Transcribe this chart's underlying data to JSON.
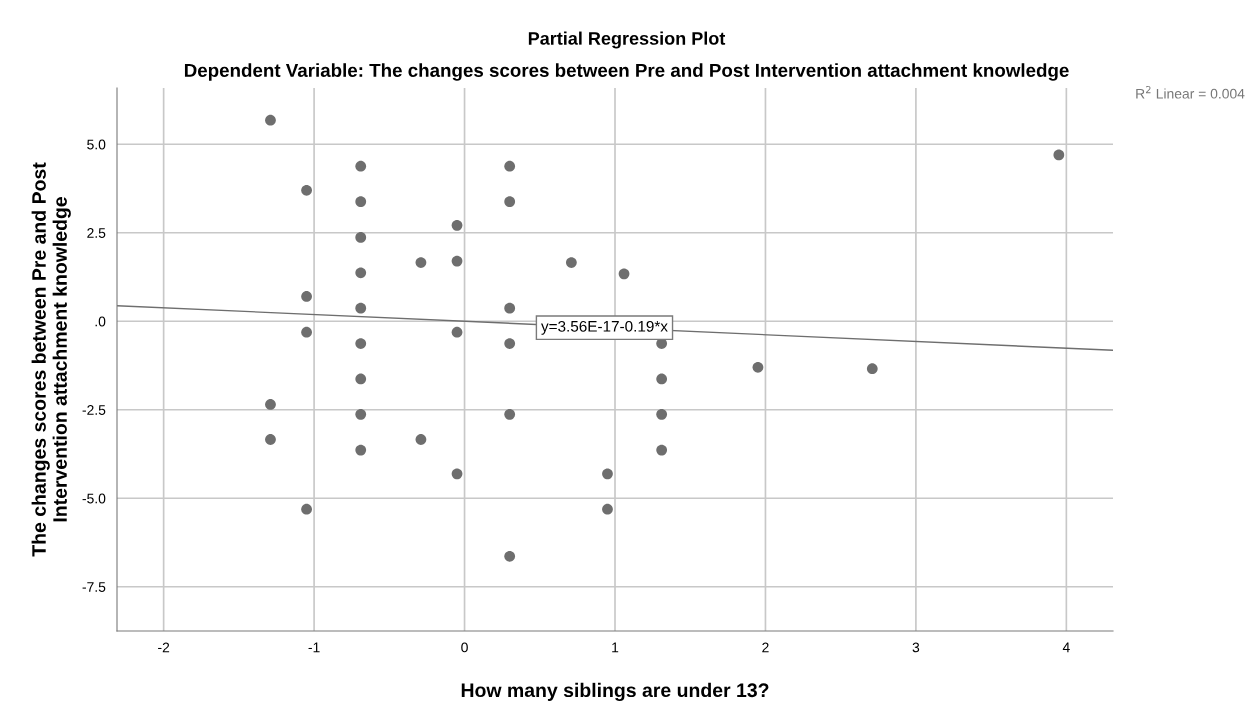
{
  "chart_data": {
    "type": "scatter",
    "title": "Partial Regression Plot",
    "subtitle": "Dependent Variable: The changes scores between Pre and Post Intervention attachment knowledge",
    "xlabel": "How many siblings are under 13?",
    "ylabel": "The changes scores between Pre and Post\nIntervention attachment knowledge",
    "xlim": [
      -2.31,
      4.31
    ],
    "ylim": [
      -8.75,
      6.59
    ],
    "xticks": [
      -2,
      -1,
      0,
      1,
      2,
      3,
      4
    ],
    "yticks": [
      {
        "value": 5,
        "label": "5.0"
      },
      {
        "value": 2.5,
        "label": "2.5"
      },
      {
        "value": 0,
        "label": ".0"
      },
      {
        "value": -2.5,
        "label": "-2.5"
      },
      {
        "value": -5,
        "label": "-5.0"
      },
      {
        "value": -7.5,
        "label": "-7.5"
      }
    ],
    "grid": true,
    "series": [
      {
        "color": "#6e6e6e",
        "marker": "circle",
        "x": [
          -1.29,
          -1.05,
          -1.05,
          -1.05,
          -1.05,
          -1.29,
          -1.29,
          -0.69,
          -0.69,
          -0.69,
          -0.69,
          -0.69,
          -0.69,
          -0.69,
          -0.69,
          -0.69,
          -0.29,
          -0.29,
          -0.05,
          -0.05,
          -0.05,
          -0.05,
          0.3,
          0.3,
          0.3,
          0.3,
          0.3,
          0.3,
          0.71,
          1.06,
          0.95,
          0.95,
          1.31,
          1.31,
          1.31,
          1.31,
          1.95,
          2.71,
          3.95
        ],
        "values": [
          5.68,
          3.7,
          0.7,
          -0.31,
          -5.31,
          -2.35,
          -3.34,
          4.38,
          3.38,
          2.37,
          1.37,
          0.37,
          -0.63,
          -1.63,
          -2.63,
          -3.64,
          1.66,
          -3.34,
          2.71,
          1.7,
          -0.31,
          -4.31,
          4.38,
          3.38,
          0.37,
          -0.63,
          -2.63,
          -6.64,
          1.66,
          1.34,
          -4.31,
          -5.31,
          -0.63,
          -1.63,
          -2.63,
          -3.64,
          -1.3,
          -1.34,
          4.7
        ]
      },
      {
        "type": "line",
        "marker": "none",
        "color": "#6e6e6e",
        "x": [
          -2.31,
          4.31
        ],
        "values": [
          0.44,
          -0.82
        ]
      }
    ],
    "annotations": [
      {
        "text": "y=3.56E-17-0.19*x",
        "x": 0.93,
        "y": -0.18
      },
      "R$^{2}$ Linear = 0.004"
    ]
  }
}
